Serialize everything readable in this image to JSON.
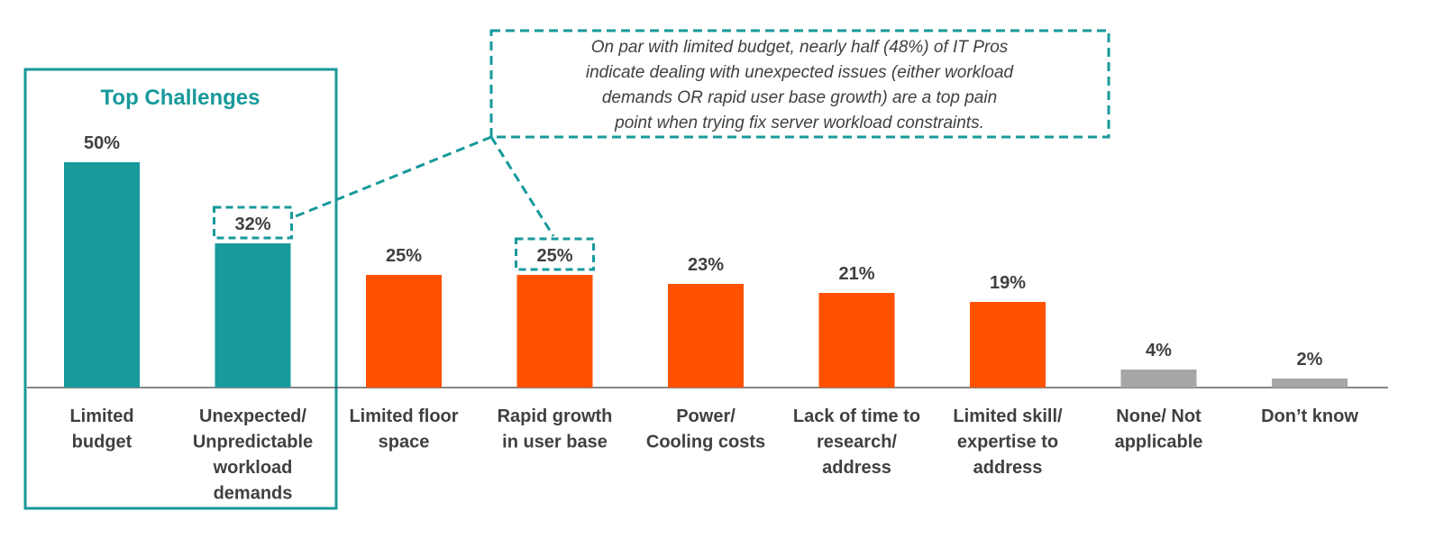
{
  "chart_data": {
    "type": "bar",
    "categories": [
      [
        "Limited",
        "budget"
      ],
      [
        "Unexpected/",
        "Unpredictable",
        "workload",
        "demands"
      ],
      [
        "Limited floor",
        "space"
      ],
      [
        "Rapid growth",
        "in user base"
      ],
      [
        "Power/",
        "Cooling costs"
      ],
      [
        "Lack of time to",
        "research/",
        "address"
      ],
      [
        "Limited skill/",
        "expertise to",
        "address"
      ],
      [
        "None/ Not",
        "applicable"
      ],
      [
        "Don’t know"
      ]
    ],
    "values": [
      50,
      32,
      25,
      25,
      23,
      21,
      19,
      4,
      2
    ],
    "value_labels": [
      "50%",
      "32%",
      "25%",
      "25%",
      "23%",
      "21%",
      "19%",
      "4%",
      "2%"
    ],
    "bar_groups": [
      "top",
      "top",
      "other",
      "other",
      "other",
      "other",
      "other",
      "none",
      "none"
    ],
    "ylim": [
      0,
      50
    ],
    "grid": false,
    "title": "",
    "xlabel": "",
    "ylabel": ""
  },
  "highlight_box": {
    "title": "Top Challenges"
  },
  "callout": {
    "lines": [
      "On par with limited budget, nearly half (48%) of IT Pros",
      "indicate dealing with unexpected issues (either workload",
      "demands OR rapid user base growth) are a top pain",
      "point when trying fix server workload constraints."
    ],
    "highlighted_values": [
      "32%",
      "25%"
    ]
  },
  "colors": {
    "top": "#18999b",
    "other": "#ff5100",
    "none": "#a6a6a6",
    "accent": "#18999b",
    "text": "#404040"
  }
}
